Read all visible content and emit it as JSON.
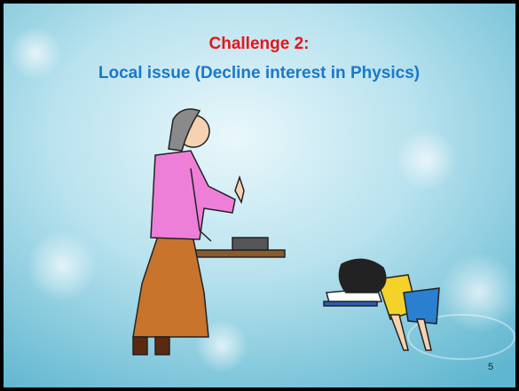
{
  "slide": {
    "title": "Challenge 2:",
    "subtitle": "Local issue (Decline interest in Physics)",
    "page_number": "5"
  }
}
